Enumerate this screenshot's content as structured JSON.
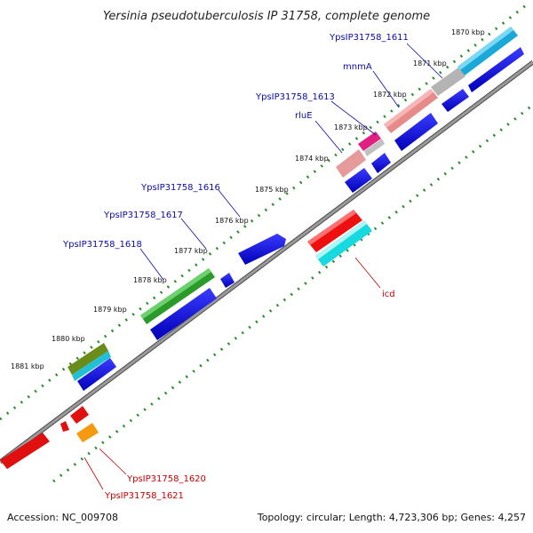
{
  "title": "Yersinia pseudotuberculosis IP 31758, complete genome",
  "footer": {
    "accession": "Accession: NC_009708",
    "topology": "Topology: circular; Length: 4,723,306 bp; Genes: 4,257"
  },
  "kbp_ticks": [
    "1870 kbp",
    "1871 kbp",
    "1872 kbp",
    "1873 kbp",
    "1874 kbp",
    "1875 kbp",
    "1876 kbp",
    "1877 kbp",
    "1878 kbp",
    "1879 kbp",
    "1880 kbp",
    "1881 kbp"
  ],
  "gene_labels": {
    "g1611": "YpsIP31758_1611",
    "mnmA": "mnmA",
    "g1613": "YpsIP31758_1613",
    "rluE": "rluE",
    "g1616": "YpsIP31758_1616",
    "g1617": "YpsIP31758_1617",
    "g1618": "YpsIP31758_1618",
    "icd": "icd",
    "g1620": "YpsIP31758_1620",
    "g1621": "YpsIP31758_1621"
  },
  "colors": {
    "cds_blue": "#0000dd",
    "backbone": "#808080",
    "dots": "#2a8a2a",
    "label_blue": "#0a0aa8",
    "label_red": "#c80000"
  }
}
